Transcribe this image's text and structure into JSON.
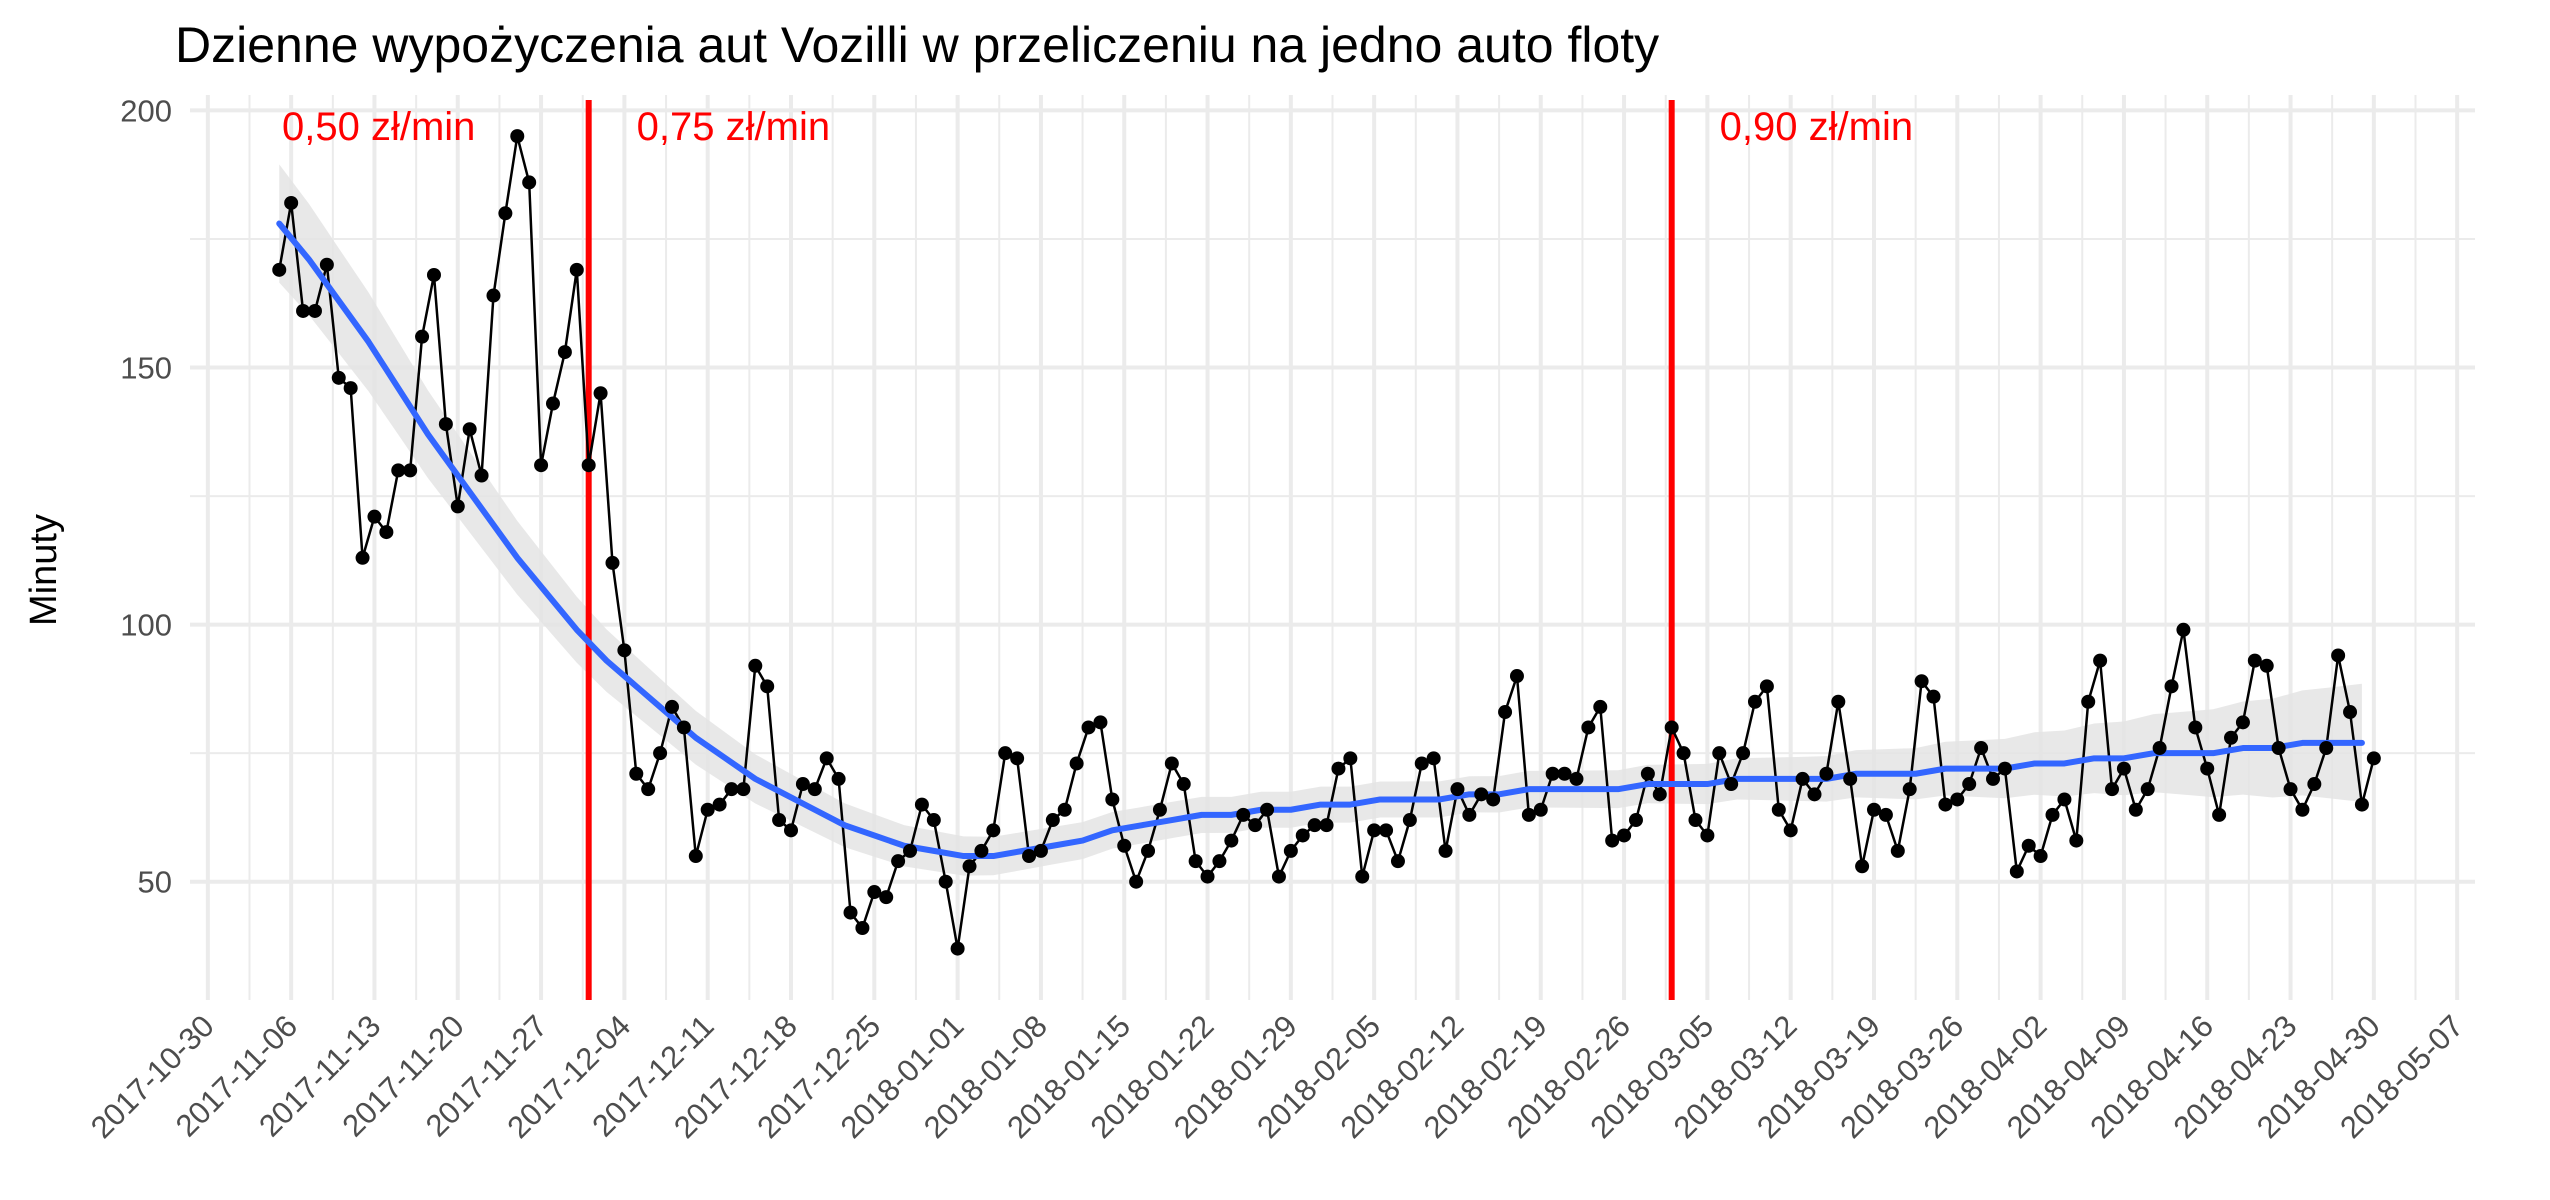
{
  "chart_data": {
    "type": "line",
    "title": "Dzienne wypożyczenia aut Vozilli w przeliczeniu na jedno auto floty",
    "xlabel": "",
    "ylabel": "Minuty",
    "ylim": [
      27,
      203
    ],
    "y_ticks": [
      50,
      100,
      150,
      200
    ],
    "x_start": "2017-11-05",
    "x_tick_labels": [
      "2017-10-30",
      "2017-11-06",
      "2017-11-13",
      "2017-11-20",
      "2017-11-27",
      "2017-12-04",
      "2017-12-11",
      "2017-12-18",
      "2017-12-25",
      "2018-01-01",
      "2018-01-08",
      "2018-01-15",
      "2018-01-22",
      "2018-01-29",
      "2018-02-05",
      "2018-02-12",
      "2018-02-19",
      "2018-02-26",
      "2018-03-05",
      "2018-03-12",
      "2018-03-19",
      "2018-03-26",
      "2018-04-02",
      "2018-04-09",
      "2018-04-16",
      "2018-04-23",
      "2018-04-30",
      "2018-05-07"
    ],
    "grid": true,
    "colors": {
      "points": "#000000",
      "line": "#000000",
      "smooth": "#3366ff",
      "ribbon": "#e4e4e4",
      "vline": "#ff0000",
      "grid": "#ebebeb"
    },
    "series": [
      {
        "values": [
          169,
          182,
          161,
          161,
          170,
          148,
          146,
          113,
          121,
          118,
          130,
          130,
          156,
          168,
          139,
          123,
          138,
          129,
          164,
          180,
          195,
          186,
          131,
          143,
          153,
          169,
          131,
          145,
          112,
          95,
          71,
          68,
          75,
          84,
          80,
          55,
          64,
          65,
          68,
          68,
          92,
          88,
          62,
          60,
          69,
          68,
          74,
          70,
          44,
          41,
          48,
          47,
          54,
          56,
          65,
          62,
          50,
          37,
          53,
          56,
          60,
          75,
          74,
          55,
          56,
          62,
          64,
          73,
          80,
          81,
          66,
          57,
          50,
          56,
          64,
          73,
          69,
          54,
          51,
          54,
          58,
          63,
          61,
          64,
          51,
          56,
          59,
          61,
          61,
          72,
          74,
          51,
          60,
          60,
          54,
          62,
          73,
          74,
          56,
          68,
          63,
          67,
          66,
          83,
          90,
          63,
          64,
          71,
          71,
          70,
          80,
          84,
          58,
          59,
          62,
          71,
          67,
          80,
          75,
          62,
          59,
          75,
          69,
          75,
          85,
          88,
          64,
          60,
          70,
          67,
          71,
          85,
          70,
          53,
          64,
          63,
          56,
          68,
          89,
          86,
          65,
          66,
          69,
          76,
          70,
          72,
          52,
          57,
          55,
          63,
          66,
          58,
          85,
          93,
          68,
          72,
          64,
          68,
          76,
          88,
          99,
          80,
          72,
          63,
          78,
          81,
          93,
          92,
          76,
          68,
          64,
          69,
          76,
          94,
          83,
          65,
          74
        ]
      },
      {
        "name": "trend",
        "values": [
          178,
          171,
          163,
          155,
          146,
          137,
          129,
          121,
          113,
          106,
          99,
          93,
          88,
          83,
          78,
          74,
          70,
          67,
          64,
          61,
          59,
          57,
          56,
          55,
          55,
          56,
          57,
          58,
          60,
          61,
          62,
          63,
          63,
          64,
          64,
          65,
          65,
          66,
          66,
          66,
          67,
          67,
          68,
          68,
          68,
          68,
          69,
          69,
          69,
          70,
          70,
          70,
          70,
          71,
          71,
          71,
          72,
          72,
          72,
          73,
          73,
          74,
          74,
          75,
          75,
          75,
          76,
          76,
          77,
          77,
          77
        ],
        "x_step_days": 2.5
      }
    ],
    "vlines": [
      {
        "date": "2017-12-01",
        "label": "0,75 zł/min"
      },
      {
        "date": "2018-03-02",
        "label": "0,90 zł/min"
      }
    ],
    "pre_label": "0,50 zł/min"
  }
}
